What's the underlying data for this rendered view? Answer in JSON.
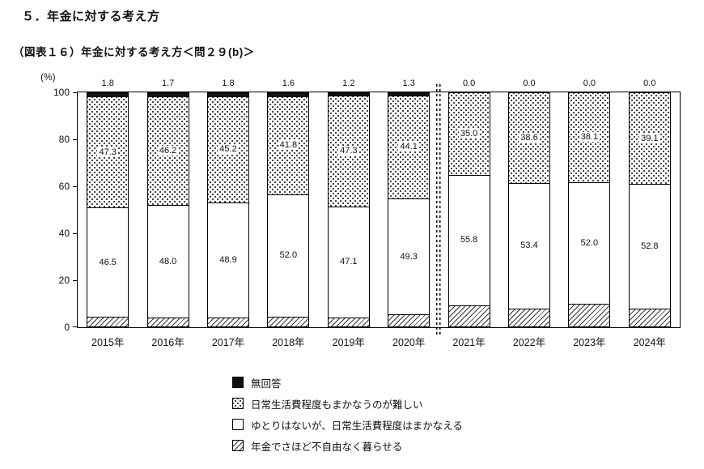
{
  "page": {
    "title": "５．年金に対する考え方",
    "subtitle": "（図表１６）年金に対する考え方＜問２９(b)＞"
  },
  "chart_data": {
    "type": "bar",
    "stacked": true,
    "orientation": "vertical",
    "unit_label": "(%)",
    "ylim": [
      0,
      100
    ],
    "yticks": [
      0,
      20,
      40,
      60,
      80,
      100
    ],
    "grid": false,
    "legend_position": "bottom",
    "categories": [
      "2015年",
      "2016年",
      "2017年",
      "2018年",
      "2019年",
      "2020年",
      "2021年",
      "2022年",
      "2023年",
      "2024年"
    ],
    "series": [
      {
        "name": "無回答",
        "pattern": "solid-black",
        "values": [
          1.8,
          1.7,
          1.8,
          1.6,
          1.2,
          1.3,
          0.0,
          0.0,
          0.0,
          0.0
        ]
      },
      {
        "name": "日常生活費程度もまかなうのが難しい",
        "pattern": "dotted",
        "values": [
          47.3,
          46.2,
          45.2,
          41.8,
          47.3,
          44.1,
          35.0,
          38.6,
          38.1,
          39.1
        ]
      },
      {
        "name": "ゆとりはないが、日常生活費程度はまかなえる",
        "pattern": "white",
        "values": [
          46.5,
          48.0,
          48.9,
          52.0,
          47.1,
          49.3,
          55.8,
          53.4,
          52.0,
          52.8
        ]
      },
      {
        "name": "年金でさほど不自由なく暮らせる",
        "pattern": "hatched",
        "values": [
          4.4,
          4.0,
          4.2,
          4.6,
          4.3,
          5.4,
          9.2,
          8.0,
          9.9,
          8.1
        ]
      }
    ],
    "divider_after_category": "2020年"
  }
}
